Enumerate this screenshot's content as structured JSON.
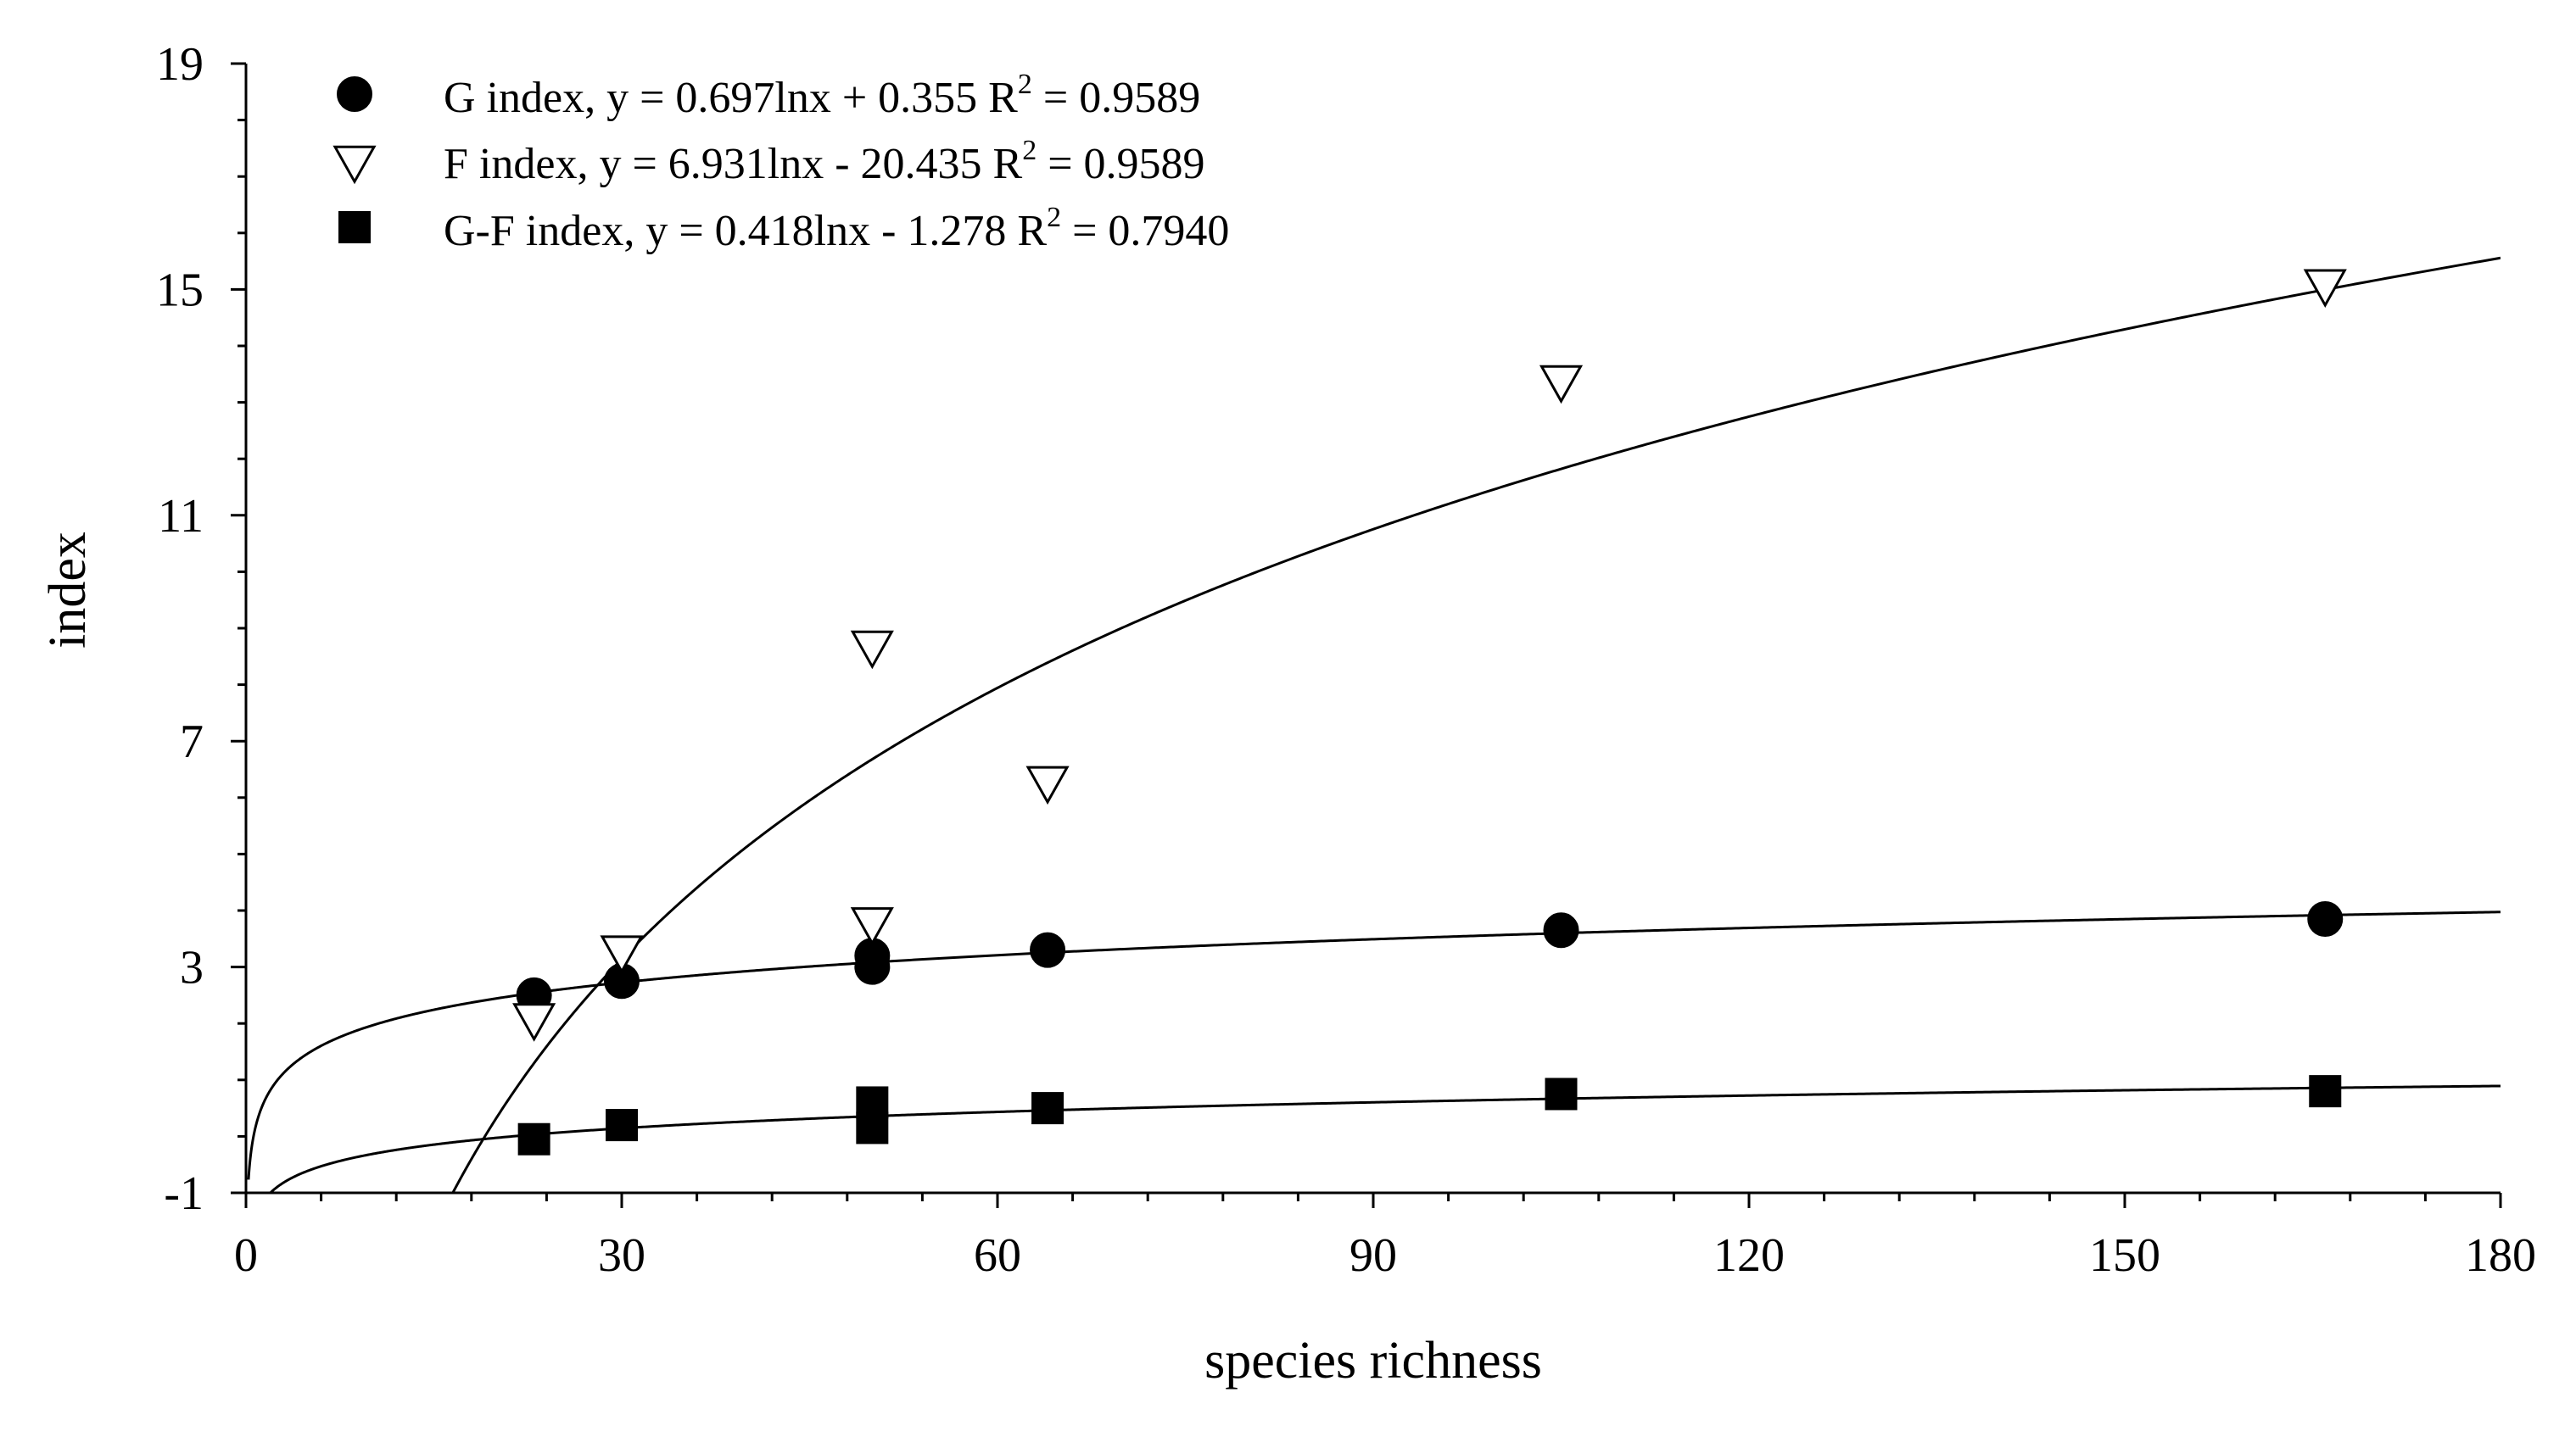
{
  "chart_data": {
    "type": "scatter",
    "title": "",
    "xlabel": "species richness",
    "ylabel": "index",
    "xlim": [
      0,
      180
    ],
    "ylim": [
      -1,
      19
    ],
    "xticks": [
      0,
      30,
      60,
      90,
      120,
      150,
      180
    ],
    "yticks": [
      -1,
      3,
      7,
      11,
      15,
      19
    ],
    "x_minor_step": 6,
    "y_minor_step": 1,
    "legend_position": "top-left",
    "series": [
      {
        "name": "G index",
        "marker": "circle-filled",
        "legend_prefix": "G index, y = 0.697lnx + 0.355  R",
        "legend_suffix": " = 0.9589",
        "legend_sup": "2",
        "fit": {
          "a": 0.697,
          "b": 0.355
        },
        "points": [
          {
            "x": 23,
            "y": 2.5
          },
          {
            "x": 30,
            "y": 2.75
          },
          {
            "x": 50,
            "y": 3.2
          },
          {
            "x": 50,
            "y": 3.0
          },
          {
            "x": 64,
            "y": 3.3
          },
          {
            "x": 105,
            "y": 3.65
          },
          {
            "x": 166,
            "y": 3.85
          }
        ]
      },
      {
        "name": "F index",
        "marker": "triangle-down-open",
        "legend_prefix": "F index, y = 6.931lnx - 20.435  R",
        "legend_suffix": " = 0.9589",
        "legend_sup": "2",
        "fit": {
          "a": 6.931,
          "b": -20.435
        },
        "points": [
          {
            "x": 23,
            "y": 2.1
          },
          {
            "x": 30,
            "y": 3.3
          },
          {
            "x": 50,
            "y": 8.7
          },
          {
            "x": 50,
            "y": 3.8
          },
          {
            "x": 64,
            "y": 6.3
          },
          {
            "x": 105,
            "y": 13.4
          },
          {
            "x": 166,
            "y": 15.1
          }
        ]
      },
      {
        "name": "G-F index",
        "marker": "square-filled",
        "legend_prefix": "G-F index, y = 0.418lnx - 1.278 R",
        "legend_suffix": " = 0.7940",
        "legend_sup": "2",
        "fit": {
          "a": 0.418,
          "b": -1.278
        },
        "points": [
          {
            "x": 23,
            "y": -0.05
          },
          {
            "x": 30,
            "y": 0.2
          },
          {
            "x": 50,
            "y": 0.6
          },
          {
            "x": 50,
            "y": 0.15
          },
          {
            "x": 64,
            "y": 0.5
          },
          {
            "x": 105,
            "y": 0.75
          },
          {
            "x": 166,
            "y": 0.8
          }
        ]
      }
    ]
  }
}
